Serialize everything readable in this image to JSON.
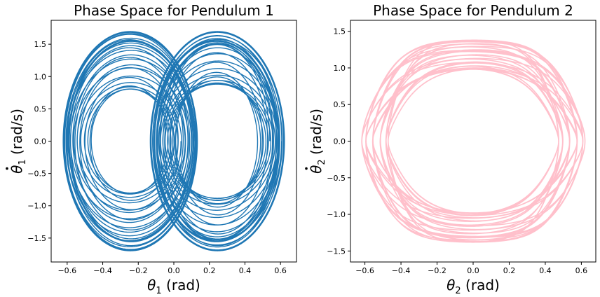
{
  "chart_data": [
    {
      "type": "line",
      "title": "Phase Space for Pendulum 1",
      "xlabel": {
        "symbol": "θ",
        "sub": "1",
        "unit": " (rad)"
      },
      "ylabel": {
        "symbol": "θ",
        "sub": "1",
        "unit": " (rad/s)",
        "dot": true
      },
      "xlim": [
        -0.69,
        0.69
      ],
      "ylim": [
        -1.87,
        1.87
      ],
      "xticks": [
        -0.6,
        -0.4,
        -0.2,
        0.0,
        0.2,
        0.4,
        0.6
      ],
      "xtick_labels": [
        "−0.6",
        "−0.4",
        "−0.2",
        "0.0",
        "0.2",
        "0.4",
        "0.6"
      ],
      "yticks": [
        -1.5,
        -1.0,
        -0.5,
        0.0,
        0.5,
        1.0,
        1.5
      ],
      "ytick_labels": [
        "−1.5",
        "−1.0",
        "−0.5",
        "0.0",
        "0.5",
        "1.0",
        "1.5"
      ],
      "color": "#1f77b4",
      "series": [
        {
          "x_amplitude": 0.62,
          "y_amplitude": 1.69,
          "x_peak": 0.245,
          "y_at_zero": 1.55,
          "description": "right-lobe orbits, x from about -0.18 to 0.62"
        },
        {
          "x_amplitude": 0.62,
          "y_amplitude": 1.69,
          "x_peak": -0.245,
          "y_at_zero": 1.55,
          "description": "left-lobe orbits, x from about -0.62 to 0.18"
        }
      ],
      "grid": false,
      "legend": "none"
    },
    {
      "type": "line",
      "title": "Phase Space for Pendulum 2",
      "xlabel": {
        "symbol": "θ",
        "sub": "2",
        "unit": " (rad)"
      },
      "ylabel": {
        "symbol": "θ",
        "sub": "2",
        "unit": " (rad/s)",
        "dot": true
      },
      "xlim": [
        -0.68,
        0.68
      ],
      "ylim": [
        -1.65,
        1.65
      ],
      "xticks": [
        -0.6,
        -0.4,
        -0.2,
        0.0,
        0.2,
        0.4,
        0.6
      ],
      "xtick_labels": [
        "−0.6",
        "−0.4",
        "−0.2",
        "0.0",
        "0.2",
        "0.4",
        "0.6"
      ],
      "yticks": [
        -1.5,
        -1.0,
        -0.5,
        0.0,
        0.5,
        1.0,
        1.5
      ],
      "ytick_labels": [
        "−1.5",
        "−1.0",
        "−0.5",
        "0.0",
        "0.5",
        "1.0",
        "1.5"
      ],
      "color": "#ffc0cb",
      "series": [
        {
          "x_amplitude": 0.62,
          "y_amplitude": 1.5,
          "inner_y_amplitude": 0.98,
          "description": "quasi-periodic band between inner and outer closed curves"
        }
      ],
      "grid": false,
      "legend": "none"
    }
  ]
}
